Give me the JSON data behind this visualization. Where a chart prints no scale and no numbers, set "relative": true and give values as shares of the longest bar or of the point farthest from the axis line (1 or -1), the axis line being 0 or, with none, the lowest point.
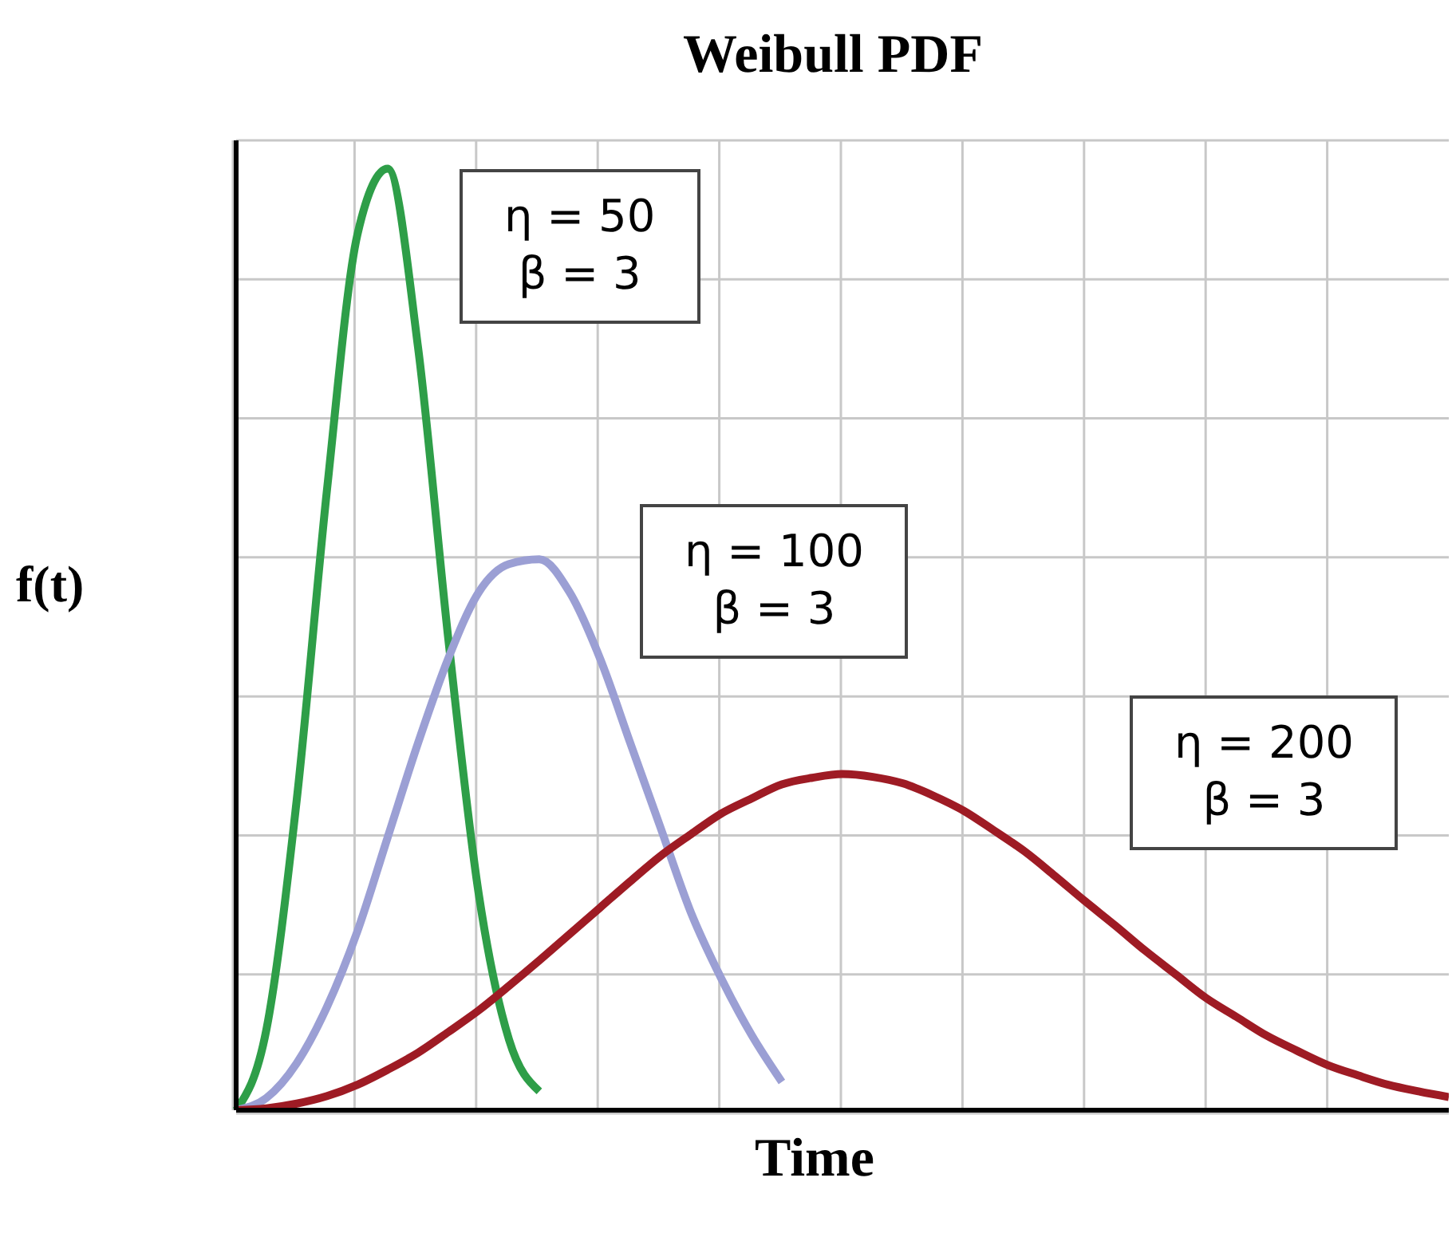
{
  "chart_data": {
    "type": "line",
    "title": "Weibull PDF",
    "xlabel": "Time",
    "ylabel": "f(t)",
    "relative": true,
    "grid": true,
    "legend": false,
    "marker": "none",
    "line_style": "solid",
    "categories": [
      null,
      null,
      null,
      null,
      null,
      null,
      null,
      null,
      null,
      null,
      null,
      null,
      null,
      null,
      null,
      null,
      null,
      null,
      null,
      null,
      null,
      null,
      null,
      null,
      null,
      null,
      null,
      null,
      null,
      null,
      null,
      null,
      null,
      null,
      null,
      null,
      null,
      null,
      null,
      null,
      null
    ],
    "series": [
      {
        "name": "η = 50\nβ = 3",
        "color": "#2e9e48",
        "values": [
          0,
          0.086,
          0.33,
          0.66,
          0.93,
          1,
          0.81,
          0.5,
          0.23,
          0.075,
          0.02,
          null,
          null,
          null,
          null,
          null,
          null,
          null,
          null,
          null,
          null,
          null,
          null,
          null,
          null,
          null,
          null,
          null,
          null,
          null,
          null,
          null,
          null,
          null,
          null,
          null,
          null,
          null,
          null,
          null,
          null
        ]
      },
      {
        "name": "η = 100\nβ = 3",
        "color": "#9b9fd4",
        "values": [
          0,
          0.013,
          0.05,
          0.11,
          0.19,
          0.29,
          0.39,
          0.48,
          0.55,
          0.58,
          0.585,
          0.55,
          0.48,
          0.39,
          0.3,
          0.21,
          0.14,
          0.08,
          0.03,
          null,
          null,
          null,
          null,
          null,
          null,
          null,
          null,
          null,
          null,
          null,
          null,
          null,
          null,
          null,
          null,
          null,
          null,
          null,
          null,
          null,
          null
        ]
      },
      {
        "name": "η = 200\nβ = 3",
        "color": "#9e1b24",
        "values": [
          0,
          0.002,
          0.007,
          0.015,
          0.027,
          0.043,
          0.061,
          0.083,
          0.106,
          0.132,
          0.159,
          0.187,
          0.215,
          0.243,
          0.27,
          0.293,
          0.315,
          0.331,
          0.346,
          0.353,
          0.357,
          0.354,
          0.347,
          0.334,
          0.318,
          0.297,
          0.275,
          0.249,
          0.222,
          0.196,
          0.169,
          0.144,
          0.119,
          0.099,
          0.079,
          0.063,
          0.048,
          0.037,
          0.027,
          0.02,
          0.014
        ]
      }
    ]
  }
}
